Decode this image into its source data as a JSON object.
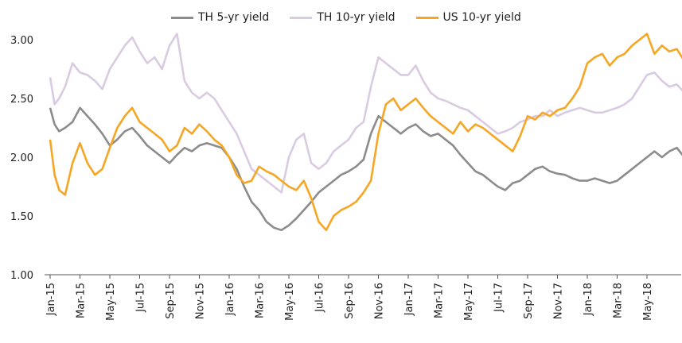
{
  "chart_data": {
    "type": "line",
    "ylim": [
      1.0,
      3.0
    ],
    "yticks": [
      "1.00",
      "1.50",
      "2.00",
      "2.50",
      "3.00"
    ],
    "xticks": [
      "Jan-15",
      "Mar-15",
      "May-15",
      "Jul-15",
      "Sep-15",
      "Nov-15",
      "Jan-16",
      "Mar-16",
      "May-16",
      "Jul-16",
      "Sep-16",
      "Nov-16",
      "Jan-17",
      "Mar-17",
      "May-17",
      "Jul-17",
      "Sep-17",
      "Nov-17",
      "Jan-18",
      "Mar-18",
      "May-18"
    ],
    "xlim": [
      0,
      42.5
    ],
    "grid": false,
    "legend_position": "top",
    "series": [
      {
        "name": "TH 5-yr yield",
        "color": "#8c8c8c",
        "x": [
          0,
          0.3,
          0.6,
          1,
          1.5,
          2,
          2.5,
          3,
          3.5,
          4,
          4.5,
          5,
          5.5,
          6,
          6.5,
          7,
          7.5,
          8,
          8.5,
          9,
          9.5,
          10,
          10.5,
          11,
          11.5,
          12,
          12.5,
          13,
          13.5,
          14,
          14.5,
          15,
          15.5,
          16,
          16.5,
          17,
          17.5,
          18,
          18.5,
          19,
          19.5,
          20,
          20.5,
          21,
          21.5,
          22,
          22.5,
          23,
          23.5,
          24,
          24.5,
          25,
          25.5,
          26,
          26.5,
          27,
          27.5,
          28,
          28.5,
          29,
          29.5,
          30,
          30.5,
          31,
          31.5,
          32,
          32.5,
          33,
          33.5,
          34,
          34.5,
          35,
          35.5,
          36,
          36.5,
          37,
          37.5,
          38,
          38.5,
          39,
          39.5,
          40,
          40.5,
          41,
          41.5,
          42,
          42.5
        ],
        "y": [
          2.42,
          2.28,
          2.22,
          2.25,
          2.3,
          2.42,
          2.35,
          2.28,
          2.2,
          2.1,
          2.15,
          2.22,
          2.25,
          2.18,
          2.1,
          2.05,
          2.0,
          1.95,
          2.02,
          2.08,
          2.05,
          2.1,
          2.12,
          2.1,
          2.08,
          2.0,
          1.9,
          1.75,
          1.62,
          1.55,
          1.45,
          1.4,
          1.38,
          1.42,
          1.48,
          1.55,
          1.62,
          1.7,
          1.75,
          1.8,
          1.85,
          1.88,
          1.92,
          1.98,
          2.2,
          2.35,
          2.3,
          2.25,
          2.2,
          2.25,
          2.28,
          2.22,
          2.18,
          2.2,
          2.15,
          2.1,
          2.02,
          1.95,
          1.88,
          1.85,
          1.8,
          1.75,
          1.72,
          1.78,
          1.8,
          1.85,
          1.9,
          1.92,
          1.88,
          1.86,
          1.85,
          1.82,
          1.8,
          1.8,
          1.82,
          1.8,
          1.78,
          1.8,
          1.85,
          1.9,
          1.95,
          2.0,
          2.05,
          2.0,
          2.05,
          2.08,
          2.0
        ]
      },
      {
        "name": "TH 10-yr yield",
        "color": "#d9cbe2",
        "x": [
          0,
          0.3,
          0.6,
          1,
          1.5,
          2,
          2.5,
          3,
          3.5,
          4,
          4.5,
          5,
          5.5,
          6,
          6.5,
          7,
          7.5,
          8,
          8.5,
          9,
          9.5,
          10,
          10.5,
          11,
          11.5,
          12,
          12.5,
          13,
          13.5,
          14,
          14.5,
          15,
          15.5,
          16,
          16.5,
          17,
          17.5,
          18,
          18.5,
          19,
          19.5,
          20,
          20.5,
          21,
          21.5,
          22,
          22.5,
          23,
          23.5,
          24,
          24.5,
          25,
          25.5,
          26,
          26.5,
          27,
          27.5,
          28,
          28.5,
          29,
          29.5,
          30,
          30.5,
          31,
          31.5,
          32,
          32.5,
          33,
          33.5,
          34,
          34.5,
          35,
          35.5,
          36,
          36.5,
          37,
          37.5,
          38,
          38.5,
          39,
          39.5,
          40,
          40.5,
          41,
          41.5,
          42,
          42.5
        ],
        "y": [
          2.68,
          2.45,
          2.5,
          2.6,
          2.8,
          2.72,
          2.7,
          2.65,
          2.58,
          2.75,
          2.85,
          2.95,
          3.02,
          2.9,
          2.8,
          2.85,
          2.75,
          2.95,
          3.05,
          2.65,
          2.55,
          2.5,
          2.55,
          2.5,
          2.4,
          2.3,
          2.2,
          2.05,
          1.9,
          1.85,
          1.8,
          1.75,
          1.7,
          2.0,
          2.15,
          2.2,
          1.95,
          1.9,
          1.95,
          2.05,
          2.1,
          2.15,
          2.25,
          2.3,
          2.6,
          2.85,
          2.8,
          2.75,
          2.7,
          2.7,
          2.78,
          2.65,
          2.55,
          2.5,
          2.48,
          2.45,
          2.42,
          2.4,
          2.35,
          2.3,
          2.25,
          2.2,
          2.22,
          2.25,
          2.3,
          2.32,
          2.35,
          2.35,
          2.4,
          2.35,
          2.38,
          2.4,
          2.42,
          2.4,
          2.38,
          2.38,
          2.4,
          2.42,
          2.45,
          2.5,
          2.6,
          2.7,
          2.72,
          2.65,
          2.6,
          2.62,
          2.55
        ]
      },
      {
        "name": "US 10-yr yield",
        "color": "#f5a623",
        "x": [
          0,
          0.3,
          0.6,
          1,
          1.5,
          2,
          2.5,
          3,
          3.5,
          4,
          4.5,
          5,
          5.5,
          6,
          6.5,
          7,
          7.5,
          8,
          8.5,
          9,
          9.5,
          10,
          10.5,
          11,
          11.5,
          12,
          12.5,
          13,
          13.5,
          14,
          14.5,
          15,
          15.5,
          16,
          16.5,
          17,
          17.5,
          18,
          18.5,
          19,
          19.5,
          20,
          20.5,
          21,
          21.5,
          22,
          22.5,
          23,
          23.5,
          24,
          24.5,
          25,
          25.5,
          26,
          26.5,
          27,
          27.5,
          28,
          28.5,
          29,
          29.5,
          30,
          30.5,
          31,
          31.5,
          32,
          32.5,
          33,
          33.5,
          34,
          34.5,
          35,
          35.5,
          36,
          36.5,
          37,
          37.5,
          38,
          38.5,
          39,
          39.5,
          40,
          40.5,
          41,
          41.5,
          42,
          42.5
        ],
        "y": [
          2.15,
          1.85,
          1.72,
          1.68,
          1.95,
          2.12,
          1.95,
          1.85,
          1.9,
          2.08,
          2.25,
          2.35,
          2.42,
          2.3,
          2.25,
          2.2,
          2.15,
          2.05,
          2.1,
          2.25,
          2.2,
          2.28,
          2.22,
          2.15,
          2.1,
          2.0,
          1.85,
          1.78,
          1.8,
          1.92,
          1.88,
          1.85,
          1.8,
          1.75,
          1.72,
          1.8,
          1.65,
          1.45,
          1.38,
          1.5,
          1.55,
          1.58,
          1.62,
          1.7,
          1.8,
          2.2,
          2.45,
          2.5,
          2.4,
          2.45,
          2.5,
          2.42,
          2.35,
          2.3,
          2.25,
          2.2,
          2.3,
          2.22,
          2.28,
          2.25,
          2.2,
          2.15,
          2.1,
          2.05,
          2.18,
          2.35,
          2.32,
          2.38,
          2.35,
          2.4,
          2.42,
          2.5,
          2.6,
          2.8,
          2.85,
          2.88,
          2.78,
          2.85,
          2.88,
          2.95,
          3.0,
          3.05,
          2.88,
          2.95,
          2.9,
          2.92,
          2.82
        ]
      }
    ]
  }
}
